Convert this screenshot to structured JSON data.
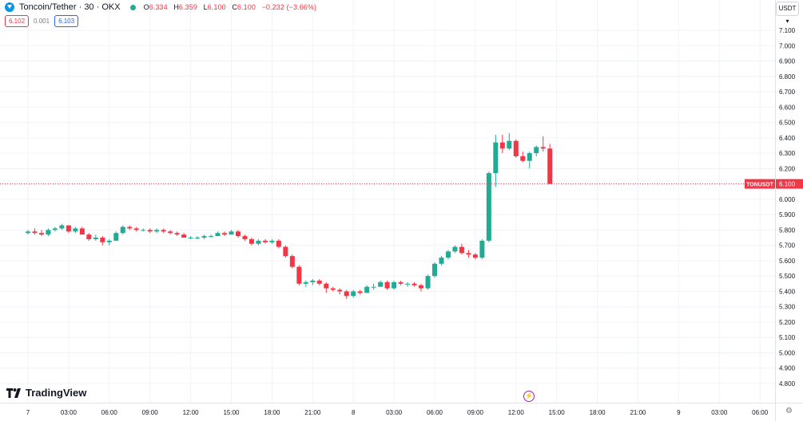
{
  "header": {
    "symbol_title": "Toncoin/Tether · 30 · OKX",
    "ohlc": {
      "open_label": "O",
      "open": "6.334",
      "high_label": "H",
      "high": "6.359",
      "low_label": "L",
      "low": "6.100",
      "close_label": "C",
      "close": "6.100",
      "change": "−0.232 (−3.66%)"
    },
    "sell_price": "6.102",
    "spread": "0.001",
    "buy_price": "6.103"
  },
  "currency_button": "USDT ▾",
  "logo_text": "TradingView",
  "last_price_label": {
    "symbol": "TONUSDT",
    "price": "6.100"
  },
  "colors": {
    "up": "#22ab94",
    "down": "#f23645",
    "grid": "#f0f3fa",
    "price_line": "#f23645"
  },
  "icons": {
    "symbol": "toncoin-icon",
    "status": "market-open-dot",
    "flash": "lightning-icon",
    "settings": "gear-icon"
  },
  "chart_data": {
    "type": "candlestick",
    "interval": "30",
    "ylim": [
      4.8,
      7.1
    ],
    "y_ticks": [
      "7.100",
      "7.000",
      "6.900",
      "6.800",
      "6.700",
      "6.600",
      "6.500",
      "6.400",
      "6.300",
      "6.200",
      "6.100",
      "6.000",
      "5.900",
      "5.800",
      "5.700",
      "5.600",
      "5.500",
      "5.400",
      "5.300",
      "5.200",
      "5.100",
      "5.000",
      "4.900",
      "4.800"
    ],
    "x_ticks": [
      "7",
      "03:00",
      "06:00",
      "09:00",
      "12:00",
      "15:00",
      "18:00",
      "21:00",
      "8",
      "03:00",
      "06:00",
      "09:00",
      "12:00",
      "15:00",
      "18:00",
      "21:00",
      "9",
      "03:00",
      "06:00"
    ],
    "candles": [
      {
        "o": 5.78,
        "h": 5.8,
        "l": 5.77,
        "c": 5.79
      },
      {
        "o": 5.79,
        "h": 5.81,
        "l": 5.77,
        "c": 5.78
      },
      {
        "o": 5.78,
        "h": 5.8,
        "l": 5.76,
        "c": 5.77
      },
      {
        "o": 5.77,
        "h": 5.81,
        "l": 5.76,
        "c": 5.8
      },
      {
        "o": 5.8,
        "h": 5.82,
        "l": 5.79,
        "c": 5.81
      },
      {
        "o": 5.81,
        "h": 5.84,
        "l": 5.8,
        "c": 5.83
      },
      {
        "o": 5.83,
        "h": 5.83,
        "l": 5.78,
        "c": 5.79
      },
      {
        "o": 5.79,
        "h": 5.82,
        "l": 5.78,
        "c": 5.81
      },
      {
        "o": 5.81,
        "h": 5.82,
        "l": 5.77,
        "c": 5.77
      },
      {
        "o": 5.77,
        "h": 5.78,
        "l": 5.73,
        "c": 5.74
      },
      {
        "o": 5.74,
        "h": 5.77,
        "l": 5.73,
        "c": 5.75
      },
      {
        "o": 5.75,
        "h": 5.76,
        "l": 5.7,
        "c": 5.72
      },
      {
        "o": 5.72,
        "h": 5.74,
        "l": 5.7,
        "c": 5.73
      },
      {
        "o": 5.73,
        "h": 5.79,
        "l": 5.73,
        "c": 5.78
      },
      {
        "o": 5.78,
        "h": 5.83,
        "l": 5.77,
        "c": 5.82
      },
      {
        "o": 5.82,
        "h": 5.83,
        "l": 5.8,
        "c": 5.81
      },
      {
        "o": 5.81,
        "h": 5.82,
        "l": 5.79,
        "c": 5.8
      },
      {
        "o": 5.8,
        "h": 5.81,
        "l": 5.79,
        "c": 5.8
      },
      {
        "o": 5.8,
        "h": 5.81,
        "l": 5.78,
        "c": 5.79
      },
      {
        "o": 5.79,
        "h": 5.81,
        "l": 5.78,
        "c": 5.8
      },
      {
        "o": 5.8,
        "h": 5.81,
        "l": 5.78,
        "c": 5.79
      },
      {
        "o": 5.79,
        "h": 5.8,
        "l": 5.77,
        "c": 5.78
      },
      {
        "o": 5.78,
        "h": 5.79,
        "l": 5.76,
        "c": 5.77
      },
      {
        "o": 5.77,
        "h": 5.78,
        "l": 5.75,
        "c": 5.75
      },
      {
        "o": 5.75,
        "h": 5.76,
        "l": 5.74,
        "c": 5.75
      },
      {
        "o": 5.75,
        "h": 5.76,
        "l": 5.74,
        "c": 5.75
      },
      {
        "o": 5.75,
        "h": 5.77,
        "l": 5.74,
        "c": 5.76
      },
      {
        "o": 5.76,
        "h": 5.77,
        "l": 5.75,
        "c": 5.76
      },
      {
        "o": 5.76,
        "h": 5.79,
        "l": 5.76,
        "c": 5.78
      },
      {
        "o": 5.78,
        "h": 5.79,
        "l": 5.76,
        "c": 5.77
      },
      {
        "o": 5.77,
        "h": 5.8,
        "l": 5.77,
        "c": 5.79
      },
      {
        "o": 5.79,
        "h": 5.8,
        "l": 5.75,
        "c": 5.76
      },
      {
        "o": 5.76,
        "h": 5.77,
        "l": 5.73,
        "c": 5.74
      },
      {
        "o": 5.74,
        "h": 5.75,
        "l": 5.7,
        "c": 5.71
      },
      {
        "o": 5.71,
        "h": 5.74,
        "l": 5.7,
        "c": 5.73
      },
      {
        "o": 5.73,
        "h": 5.74,
        "l": 5.71,
        "c": 5.72
      },
      {
        "o": 5.72,
        "h": 5.74,
        "l": 5.71,
        "c": 5.73
      },
      {
        "o": 5.73,
        "h": 5.74,
        "l": 5.68,
        "c": 5.69
      },
      {
        "o": 5.69,
        "h": 5.7,
        "l": 5.62,
        "c": 5.63
      },
      {
        "o": 5.63,
        "h": 5.64,
        "l": 5.55,
        "c": 5.56
      },
      {
        "o": 5.56,
        "h": 5.57,
        "l": 5.44,
        "c": 5.45
      },
      {
        "o": 5.45,
        "h": 5.47,
        "l": 5.43,
        "c": 5.46
      },
      {
        "o": 5.46,
        "h": 5.48,
        "l": 5.44,
        "c": 5.47
      },
      {
        "o": 5.47,
        "h": 5.48,
        "l": 5.44,
        "c": 5.45
      },
      {
        "o": 5.45,
        "h": 5.46,
        "l": 5.39,
        "c": 5.42
      },
      {
        "o": 5.42,
        "h": 5.43,
        "l": 5.4,
        "c": 5.41
      },
      {
        "o": 5.41,
        "h": 5.42,
        "l": 5.38,
        "c": 5.4
      },
      {
        "o": 5.4,
        "h": 5.41,
        "l": 5.35,
        "c": 5.37
      },
      {
        "o": 5.37,
        "h": 5.41,
        "l": 5.36,
        "c": 5.4
      },
      {
        "o": 5.4,
        "h": 5.41,
        "l": 5.38,
        "c": 5.39
      },
      {
        "o": 5.39,
        "h": 5.44,
        "l": 5.39,
        "c": 5.43
      },
      {
        "o": 5.43,
        "h": 5.45,
        "l": 5.41,
        "c": 5.43
      },
      {
        "o": 5.43,
        "h": 5.47,
        "l": 5.43,
        "c": 5.46
      },
      {
        "o": 5.46,
        "h": 5.47,
        "l": 5.41,
        "c": 5.42
      },
      {
        "o": 5.42,
        "h": 5.47,
        "l": 5.41,
        "c": 5.46
      },
      {
        "o": 5.46,
        "h": 5.47,
        "l": 5.44,
        "c": 5.45
      },
      {
        "o": 5.45,
        "h": 5.46,
        "l": 5.43,
        "c": 5.45
      },
      {
        "o": 5.45,
        "h": 5.46,
        "l": 5.43,
        "c": 5.44
      },
      {
        "o": 5.44,
        "h": 5.45,
        "l": 5.4,
        "c": 5.42
      },
      {
        "o": 5.42,
        "h": 5.51,
        "l": 5.41,
        "c": 5.5
      },
      {
        "o": 5.5,
        "h": 5.59,
        "l": 5.49,
        "c": 5.58
      },
      {
        "o": 5.58,
        "h": 5.63,
        "l": 5.57,
        "c": 5.62
      },
      {
        "o": 5.62,
        "h": 5.67,
        "l": 5.61,
        "c": 5.66
      },
      {
        "o": 5.66,
        "h": 5.7,
        "l": 5.65,
        "c": 5.69
      },
      {
        "o": 5.69,
        "h": 5.71,
        "l": 5.64,
        "c": 5.65
      },
      {
        "o": 5.65,
        "h": 5.67,
        "l": 5.62,
        "c": 5.64
      },
      {
        "o": 5.64,
        "h": 5.65,
        "l": 5.61,
        "c": 5.62
      },
      {
        "o": 5.62,
        "h": 5.74,
        "l": 5.61,
        "c": 5.73
      },
      {
        "o": 5.73,
        "h": 6.18,
        "l": 5.72,
        "c": 6.17
      },
      {
        "o": 6.17,
        "h": 6.42,
        "l": 6.08,
        "c": 6.37
      },
      {
        "o": 6.37,
        "h": 6.42,
        "l": 6.3,
        "c": 6.33
      },
      {
        "o": 6.33,
        "h": 6.43,
        "l": 6.32,
        "c": 6.38
      },
      {
        "o": 6.38,
        "h": 6.39,
        "l": 6.27,
        "c": 6.28
      },
      {
        "o": 6.28,
        "h": 6.31,
        "l": 6.24,
        "c": 6.25
      },
      {
        "o": 6.25,
        "h": 6.31,
        "l": 6.2,
        "c": 6.3
      },
      {
        "o": 6.3,
        "h": 6.35,
        "l": 6.28,
        "c": 6.34
      },
      {
        "o": 6.34,
        "h": 6.41,
        "l": 6.31,
        "c": 6.33
      },
      {
        "o": 6.33,
        "h": 6.36,
        "l": 6.1,
        "c": 6.1
      }
    ]
  }
}
